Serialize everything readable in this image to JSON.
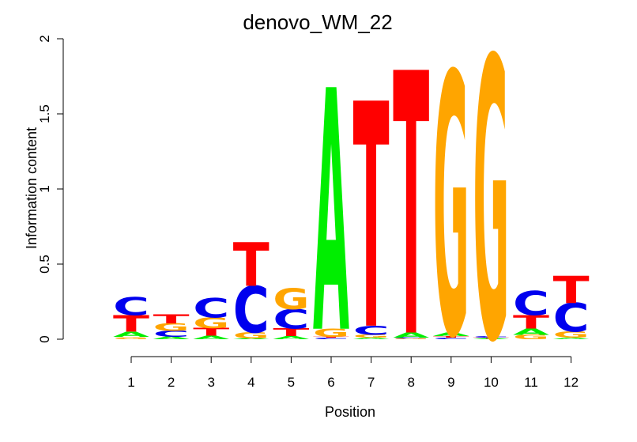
{
  "chart_data": {
    "type": "sequence-logo",
    "title": "denovo_WM_22",
    "xlabel": "Position",
    "ylabel": "Information content",
    "ylim": [
      0,
      2
    ],
    "yticks": [
      "0",
      "0.5",
      "1",
      "1.5",
      "2"
    ],
    "ytick_values": [
      0,
      0.5,
      1,
      1.5,
      2
    ],
    "positions": [
      "1",
      "2",
      "3",
      "4",
      "5",
      "6",
      "7",
      "8",
      "9",
      "10",
      "11",
      "12"
    ],
    "colors": {
      "A": "#00ee00",
      "C": "#0000ee",
      "G": "#ffa500",
      "T": "#ff0000"
    },
    "columns": [
      {
        "position": "1",
        "stack": [
          {
            "letter": "G",
            "height": 0.015
          },
          {
            "letter": "A",
            "height": 0.035
          },
          {
            "letter": "T",
            "height": 0.11
          },
          {
            "letter": "C",
            "height": 0.12
          }
        ]
      },
      {
        "position": "2",
        "stack": [
          {
            "letter": "A",
            "height": 0.015
          },
          {
            "letter": "C",
            "height": 0.04
          },
          {
            "letter": "G",
            "height": 0.05
          },
          {
            "letter": "T",
            "height": 0.06
          }
        ]
      },
      {
        "position": "3",
        "stack": [
          {
            "letter": "A",
            "height": 0.025
          },
          {
            "letter": "T",
            "height": 0.05
          },
          {
            "letter": "G",
            "height": 0.07
          },
          {
            "letter": "C",
            "height": 0.13
          }
        ]
      },
      {
        "position": "4",
        "stack": [
          {
            "letter": "A",
            "height": 0.005
          },
          {
            "letter": "G",
            "height": 0.04
          },
          {
            "letter": "C",
            "height": 0.31
          },
          {
            "letter": "T",
            "height": 0.29
          }
        ]
      },
      {
        "position": "5",
        "stack": [
          {
            "letter": "A",
            "height": 0.02
          },
          {
            "letter": "T",
            "height": 0.05
          },
          {
            "letter": "C",
            "height": 0.13
          },
          {
            "letter": "G",
            "height": 0.14
          }
        ]
      },
      {
        "position": "6",
        "stack": [
          {
            "letter": "C",
            "height": 0.01
          },
          {
            "letter": "T",
            "height": 0.005
          },
          {
            "letter": "G",
            "height": 0.055
          },
          {
            "letter": "A",
            "height": 1.61
          }
        ]
      },
      {
        "position": "7",
        "stack": [
          {
            "letter": "A",
            "height": 0.01
          },
          {
            "letter": "G",
            "height": 0.02
          },
          {
            "letter": "C",
            "height": 0.06
          },
          {
            "letter": "T",
            "height": 1.5
          }
        ]
      },
      {
        "position": "8",
        "stack": [
          {
            "letter": "G",
            "height": 0.005
          },
          {
            "letter": "C",
            "height": 0.005
          },
          {
            "letter": "A",
            "height": 0.035
          },
          {
            "letter": "T",
            "height": 1.75
          }
        ]
      },
      {
        "position": "9",
        "stack": [
          {
            "letter": "C",
            "height": 0.01
          },
          {
            "letter": "T",
            "height": 0.01
          },
          {
            "letter": "A",
            "height": 0.025
          },
          {
            "letter": "G",
            "height": 1.74
          }
        ]
      },
      {
        "position": "10",
        "stack": [
          {
            "letter": "A",
            "height": 0.005
          },
          {
            "letter": "T",
            "height": 0.005
          },
          {
            "letter": "C",
            "height": 0.01
          },
          {
            "letter": "G",
            "height": 1.87
          }
        ]
      },
      {
        "position": "11",
        "stack": [
          {
            "letter": "G",
            "height": 0.03
          },
          {
            "letter": "A",
            "height": 0.04
          },
          {
            "letter": "T",
            "height": 0.09
          },
          {
            "letter": "C",
            "height": 0.16
          }
        ]
      },
      {
        "position": "12",
        "stack": [
          {
            "letter": "A",
            "height": 0.01
          },
          {
            "letter": "G",
            "height": 0.04
          },
          {
            "letter": "C",
            "height": 0.19
          },
          {
            "letter": "T",
            "height": 0.18
          }
        ]
      }
    ]
  }
}
